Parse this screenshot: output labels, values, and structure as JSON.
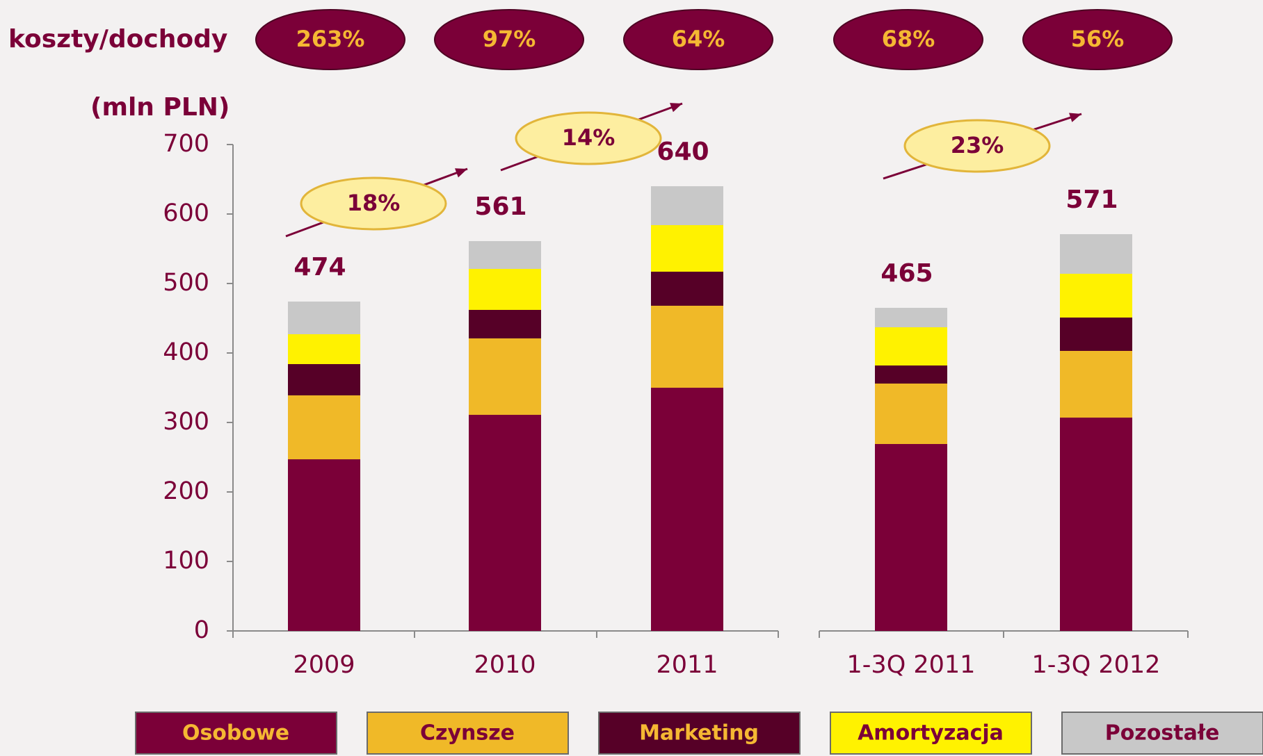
{
  "chart_data": {
    "type": "stacked_bar",
    "unit_label": "(mln PLN)",
    "categories": [
      "2009",
      "2010",
      "2011",
      "1-3Q 2011",
      "1-3Q 2012"
    ],
    "series": [
      {
        "name": "Osobowe",
        "color": "#7b0038",
        "values": [
          247,
          311,
          350,
          269,
          307
        ]
      },
      {
        "name": "Czynsze",
        "color": "#f0b928",
        "values": [
          92,
          110,
          118,
          87,
          96
        ]
      },
      {
        "name": "Marketing",
        "color": "#560027",
        "values": [
          45,
          41,
          49,
          26,
          48
        ]
      },
      {
        "name": "Amortyzacja",
        "color": "#fff200",
        "values": [
          43,
          59,
          67,
          55,
          63
        ]
      },
      {
        "name": "Pozostałe",
        "color": "#c8c8c8",
        "values": [
          47,
          40,
          56,
          28,
          57
        ]
      }
    ],
    "totals": [
      474,
      561,
      640,
      465,
      571
    ],
    "ratio_title": "koszty/dochody",
    "ratios": [
      263,
      97,
      64,
      68,
      56
    ],
    "ratio_labels": [
      "263%",
      "97%",
      "64%",
      "68%",
      "56%"
    ],
    "growth": [
      18,
      14,
      23
    ],
    "growth_labels": [
      "18%",
      "14%",
      "23%"
    ],
    "ylim": [
      0,
      700
    ],
    "yticks": [
      0,
      100,
      200,
      300,
      400,
      500,
      600,
      700
    ]
  }
}
